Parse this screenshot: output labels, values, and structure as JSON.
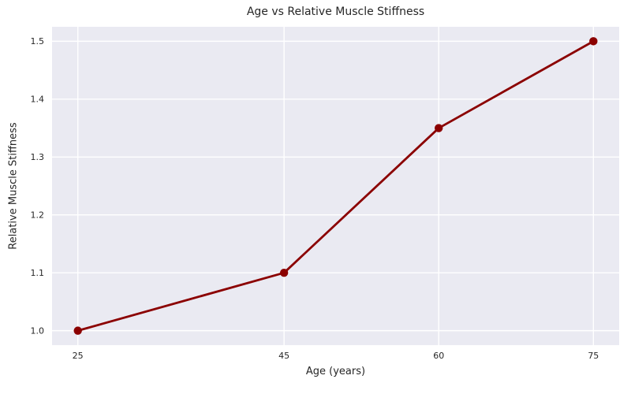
{
  "chart_data": {
    "type": "line",
    "title": "Age vs Relative Muscle Stiffness",
    "xlabel": "Age (years)",
    "ylabel": "Relative Muscle Stiffness",
    "x": [
      25,
      45,
      60,
      75
    ],
    "y": [
      1.0,
      1.1,
      1.35,
      1.5
    ],
    "series_name": "relative-muscle-stiffness",
    "xticks": [
      25,
      45,
      60,
      75
    ],
    "xtick_labels": [
      "25",
      "45",
      "60",
      "75"
    ],
    "yticks": [
      1.0,
      1.1,
      1.2,
      1.3,
      1.4,
      1.5
    ],
    "ytick_labels": [
      "1.0",
      "1.1",
      "1.2",
      "1.3",
      "1.4",
      "1.5"
    ],
    "xlim": [
      22.5,
      77.5
    ],
    "ylim": [
      0.975,
      1.525
    ],
    "grid": true,
    "legend": false,
    "colors": {
      "line": "#8B0000",
      "marker": "#8B0000",
      "plot_background": "#EAEAF2",
      "figure_background": "#FFFFFF",
      "gridline": "#FFFFFF",
      "text": "#262626"
    }
  }
}
